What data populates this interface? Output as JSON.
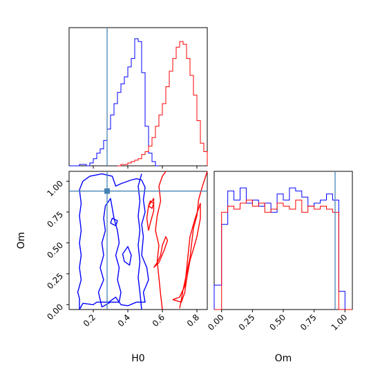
{
  "colors": {
    "series_a": "#0000ff",
    "series_b": "#ff0000",
    "truth": "#4682b4",
    "axes": "#000000"
  },
  "chart_data": [
    {
      "type": "histogram",
      "panel": "H0 marginal",
      "xlim": [
        0.06,
        0.86
      ],
      "truth": 0.28,
      "series": [
        {
          "color": "blue",
          "edges": [
            0.06,
            0.08,
            0.1,
            0.12,
            0.14,
            0.16,
            0.18,
            0.2,
            0.22,
            0.24,
            0.26,
            0.28,
            0.3,
            0.32,
            0.34,
            0.36,
            0.38,
            0.4,
            0.42,
            0.44,
            0.46,
            0.48,
            0.5,
            0.52,
            0.54,
            0.56,
            0.58
          ],
          "counts": [
            0,
            0,
            0,
            1,
            1,
            0,
            2,
            5,
            9,
            12,
            18,
            26,
            36,
            44,
            52,
            58,
            63,
            70,
            76,
            90,
            88,
            66,
            28,
            9,
            3,
            0
          ]
        },
        {
          "color": "red",
          "edges": [
            0.34,
            0.36,
            0.38,
            0.4,
            0.42,
            0.44,
            0.46,
            0.48,
            0.5,
            0.52,
            0.54,
            0.56,
            0.58,
            0.6,
            0.62,
            0.64,
            0.66,
            0.68,
            0.7,
            0.72,
            0.74,
            0.76,
            0.78,
            0.8,
            0.82,
            0.84,
            0.86
          ],
          "counts": [
            0,
            1,
            1,
            2,
            3,
            4,
            5,
            8,
            10,
            14,
            20,
            28,
            36,
            44,
            56,
            67,
            76,
            84,
            88,
            86,
            76,
            64,
            50,
            32,
            16,
            10
          ]
        }
      ]
    },
    {
      "type": "contour",
      "panel": "H0 vs Om",
      "xlabel": "H0",
      "ylabel": "Om",
      "xlim": [
        0.06,
        0.86
      ],
      "ylim": [
        -0.04,
        1.08
      ],
      "xticks": [
        "0.2",
        "0.4",
        "0.6",
        "0.8"
      ],
      "yticks": [
        "0.00",
        "0.25",
        "0.50",
        "0.75",
        "1.00"
      ],
      "truth": {
        "x": 0.28,
        "y": 0.92
      },
      "contours": [
        {
          "color": "blue",
          "points": [
            [
              0.48,
              -0.04
            ],
            [
              0.47,
              0.1
            ],
            [
              0.46,
              0.22
            ],
            [
              0.47,
              0.35
            ],
            [
              0.46,
              0.48
            ],
            [
              0.47,
              0.6
            ],
            [
              0.46,
              0.72
            ],
            [
              0.47,
              0.84
            ],
            [
              0.46,
              0.96
            ],
            [
              0.48,
              1.06
            ]
          ]
        },
        {
          "color": "blue",
          "points": [
            [
              0.12,
              -0.04
            ],
            [
              0.12,
              0.05
            ],
            [
              0.11,
              0.1
            ],
            [
              0.13,
              0.2
            ],
            [
              0.12,
              0.3
            ],
            [
              0.13,
              0.4
            ],
            [
              0.12,
              0.5
            ],
            [
              0.13,
              0.6
            ],
            [
              0.12,
              0.72
            ],
            [
              0.13,
              0.82
            ],
            [
              0.12,
              0.93
            ],
            [
              0.14,
              1.0
            ],
            [
              0.18,
              1.04
            ],
            [
              0.25,
              1.06
            ],
            [
              0.31,
              1.04
            ],
            [
              0.33,
              0.96
            ],
            [
              0.36,
              0.98
            ],
            [
              0.42,
              1.01
            ],
            [
              0.45,
              1.02
            ],
            [
              0.48,
              1.01
            ],
            [
              0.5,
              0.95
            ],
            [
              0.49,
              0.85
            ],
            [
              0.5,
              0.75
            ],
            [
              0.48,
              0.65
            ],
            [
              0.49,
              0.55
            ],
            [
              0.48,
              0.4
            ],
            [
              0.51,
              0.3
            ],
            [
              0.52,
              0.2
            ],
            [
              0.49,
              0.1
            ],
            [
              0.5,
              0.02
            ],
            [
              0.45,
              0.02
            ],
            [
              0.4,
              -0.01
            ],
            [
              0.36,
              0.0
            ],
            [
              0.33,
              0.06
            ],
            [
              0.29,
              0.02
            ],
            [
              0.22,
              0.02
            ],
            [
              0.2,
              0.0
            ],
            [
              0.14,
              0.01
            ],
            [
              0.12,
              -0.04
            ]
          ]
        },
        {
          "color": "blue",
          "points": [
            [
              0.25,
              -0.02
            ],
            [
              0.23,
              0.1
            ],
            [
              0.26,
              0.2
            ],
            [
              0.24,
              0.3
            ],
            [
              0.26,
              0.4
            ],
            [
              0.25,
              0.5
            ],
            [
              0.27,
              0.6
            ],
            [
              0.26,
              0.7
            ],
            [
              0.27,
              0.8
            ],
            [
              0.3,
              0.86
            ],
            [
              0.32,
              0.7
            ],
            [
              0.34,
              0.6
            ],
            [
              0.35,
              0.5
            ],
            [
              0.33,
              0.4
            ],
            [
              0.35,
              0.3
            ],
            [
              0.34,
              0.2
            ],
            [
              0.36,
              0.1
            ],
            [
              0.35,
              0.02
            ],
            [
              0.3,
              0.02
            ],
            [
              0.25,
              -0.02
            ]
          ]
        },
        {
          "color": "blue",
          "points": [
            [
              0.37,
              0.41
            ],
            [
              0.38,
              0.35
            ],
            [
              0.41,
              0.32
            ],
            [
              0.42,
              0.4
            ],
            [
              0.4,
              0.47
            ],
            [
              0.37,
              0.41
            ]
          ]
        },
        {
          "color": "blue",
          "points": [
            [
              0.3,
              0.66
            ],
            [
              0.33,
              0.64
            ],
            [
              0.34,
              0.68
            ],
            [
              0.31,
              0.7
            ],
            [
              0.3,
              0.66
            ]
          ]
        },
        {
          "color": "red",
          "points": [
            [
              0.6,
              -0.04
            ],
            [
              0.59,
              0.08
            ],
            [
              0.58,
              0.22
            ],
            [
              0.57,
              0.35
            ],
            [
              0.58,
              0.48
            ],
            [
              0.56,
              0.6
            ],
            [
              0.57,
              0.72
            ],
            [
              0.59,
              0.84
            ],
            [
              0.58,
              0.96
            ],
            [
              0.6,
              1.04
            ],
            [
              0.62,
              1.08
            ]
          ]
        },
        {
          "color": "red",
          "points": [
            [
              0.86,
              1.08
            ],
            [
              0.83,
              0.95
            ],
            [
              0.81,
              0.85
            ],
            [
              0.8,
              0.72
            ],
            [
              0.78,
              0.62
            ],
            [
              0.77,
              0.5
            ],
            [
              0.76,
              0.38
            ],
            [
              0.74,
              0.25
            ],
            [
              0.72,
              0.12
            ],
            [
              0.71,
              0.04
            ],
            [
              0.7,
              -0.03
            ]
          ]
        },
        {
          "color": "red",
          "points": [
            [
              0.66,
              0.04
            ],
            [
              0.7,
              0.06
            ],
            [
              0.73,
              0.15
            ],
            [
              0.74,
              0.28
            ],
            [
              0.75,
              0.42
            ],
            [
              0.76,
              0.55
            ],
            [
              0.79,
              0.7
            ],
            [
              0.82,
              0.82
            ],
            [
              0.82,
              0.7
            ],
            [
              0.8,
              0.55
            ],
            [
              0.78,
              0.45
            ],
            [
              0.76,
              0.36
            ],
            [
              0.74,
              0.2
            ],
            [
              0.73,
              0.1
            ],
            [
              0.71,
              0.02
            ],
            [
              0.66,
              0.04
            ]
          ]
        },
        {
          "color": "red",
          "points": [
            [
              0.52,
              0.6
            ],
            [
              0.51,
              0.7
            ],
            [
              0.52,
              0.8
            ],
            [
              0.55,
              0.86
            ],
            [
              0.55,
              0.76
            ],
            [
              0.53,
              0.66
            ],
            [
              0.52,
              0.6
            ]
          ]
        },
        {
          "color": "red",
          "points": [
            [
              0.55,
              0.3
            ],
            [
              0.57,
              0.34
            ],
            [
              0.59,
              0.4
            ],
            [
              0.6,
              0.48
            ],
            [
              0.62,
              0.55
            ],
            [
              0.63,
              0.52
            ],
            [
              0.61,
              0.44
            ],
            [
              0.58,
              0.34
            ],
            [
              0.55,
              0.3
            ]
          ]
        },
        {
          "color": "red",
          "points": [
            [
              0.52,
              0.8
            ],
            [
              0.54,
              0.78
            ],
            [
              0.55,
              0.82
            ],
            [
              0.53,
              0.84
            ],
            [
              0.52,
              0.8
            ]
          ]
        }
      ]
    },
    {
      "type": "histogram",
      "panel": "Om marginal",
      "xlabel": "Om",
      "xlim": [
        -0.06,
        1.06
      ],
      "xticks": [
        "0.00",
        "0.25",
        "0.50",
        "0.75",
        "1.00"
      ],
      "truth": 0.92,
      "series": [
        {
          "color": "blue",
          "edges": [
            -0.06,
            0.0,
            0.05,
            0.1,
            0.15,
            0.2,
            0.25,
            0.3,
            0.35,
            0.4,
            0.45,
            0.5,
            0.55,
            0.6,
            0.65,
            0.7,
            0.75,
            0.8,
            0.85,
            0.9,
            0.95,
            1.0,
            1.06
          ],
          "counts": [
            40,
            140,
            195,
            180,
            200,
            175,
            180,
            170,
            175,
            160,
            190,
            180,
            200,
            195,
            185,
            170,
            175,
            180,
            190,
            180,
            30,
            0
          ]
        },
        {
          "color": "red",
          "edges": [
            -0.06,
            0.0,
            0.05,
            0.1,
            0.15,
            0.2,
            0.25,
            0.3,
            0.35,
            0.4,
            0.45,
            0.5,
            0.55,
            0.6,
            0.65,
            0.7,
            0.75,
            0.8,
            0.85,
            0.9,
            0.95,
            1.0,
            1.06
          ],
          "counts": [
            0,
            160,
            170,
            165,
            175,
            180,
            170,
            175,
            160,
            165,
            175,
            170,
            165,
            180,
            160,
            170,
            165,
            170,
            165,
            160,
            0,
            0
          ]
        }
      ]
    }
  ]
}
